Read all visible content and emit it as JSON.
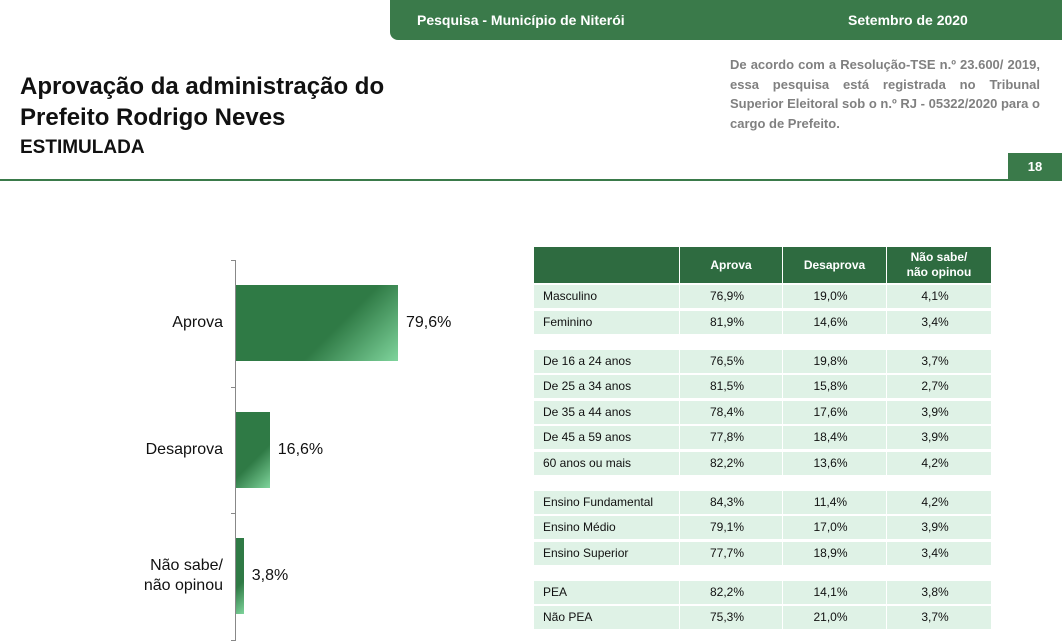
{
  "header": {
    "survey": "Pesquisa - Município de Niterói",
    "date": "Setembro de 2020",
    "title_line1": "Aprovação da administração do",
    "title_line2": "Prefeito Rodrigo Neves",
    "subtitle": "ESTIMULADA",
    "note": "De acordo com a Resolução-TSE n.º 23.600/ 2019, essa pesquisa está registrada no Tribunal Superior Eleitoral sob o n.º RJ - 05322/2020 para o cargo de Prefeito.",
    "page": "18"
  },
  "chart_data": {
    "type": "bar",
    "orientation": "horizontal",
    "categories": [
      "Aprova",
      "Desaprova",
      "Não sabe/\nnão opinou"
    ],
    "values": [
      79.6,
      16.6,
      3.8
    ],
    "value_labels": [
      "79,6%",
      "16,6%",
      "3,8%"
    ],
    "color": "#2f7a45"
  },
  "table": {
    "columns": [
      "Aprova",
      "Desaprova",
      "Não sabe/\nnão opinou"
    ],
    "groups": [
      [
        [
          "Masculino",
          "76,9%",
          "19,0%",
          "4,1%"
        ],
        [
          "Feminino",
          "81,9%",
          "14,6%",
          "3,4%"
        ]
      ],
      [
        [
          "De 16 a 24 anos",
          "76,5%",
          "19,8%",
          "3,7%"
        ],
        [
          "De 25 a 34 anos",
          "81,5%",
          "15,8%",
          "2,7%"
        ],
        [
          "De 35 a 44 anos",
          "78,4%",
          "17,6%",
          "3,9%"
        ],
        [
          "De 45 a 59 anos",
          "77,8%",
          "18,4%",
          "3,9%"
        ],
        [
          "60 anos ou mais",
          "82,2%",
          "13,6%",
          "4,2%"
        ]
      ],
      [
        [
          "Ensino Fundamental",
          "84,3%",
          "11,4%",
          "4,2%"
        ],
        [
          "Ensino Médio",
          "79,1%",
          "17,0%",
          "3,9%"
        ],
        [
          "Ensino Superior",
          "77,7%",
          "18,9%",
          "3,4%"
        ]
      ],
      [
        [
          "PEA",
          "82,2%",
          "14,1%",
          "3,8%"
        ],
        [
          "Não PEA",
          "75,3%",
          "21,0%",
          "3,7%"
        ]
      ]
    ]
  }
}
